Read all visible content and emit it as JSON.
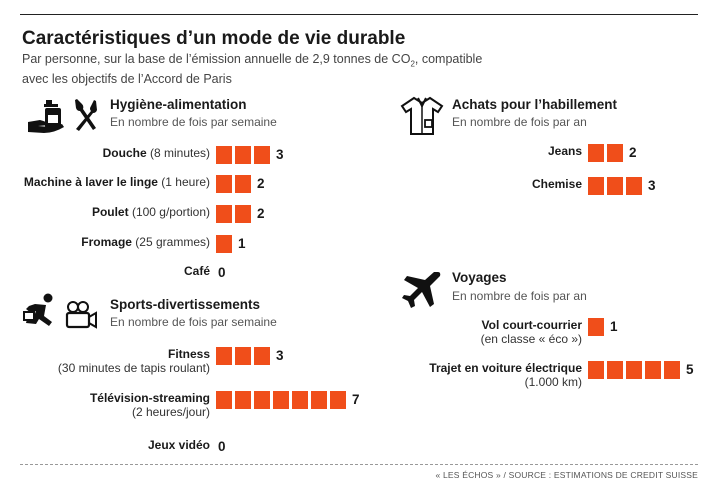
{
  "title": "Caractéristiques d’un mode de vie durable",
  "subtitle_line1": "Par personne, sur la base de l’émission annuelle de 2,9 tonnes de CO",
  "subtitle_sub": "2",
  "subtitle_line1_end": ", compatible",
  "subtitle_line2": "avec les objectifs de l’Accord de Paris",
  "colors": {
    "bar": "#f04e1a",
    "text": "#1a1a1a"
  },
  "sections": {
    "hygiene": {
      "title": "Hygiène-alimentation",
      "subtitle": "En nombre de fois par semaine",
      "icons": [
        "hand-wash-icon",
        "fork-knife-icon"
      ]
    },
    "sports": {
      "title": "Sports-divertissements",
      "subtitle": "En nombre de fois par semaine",
      "icons": [
        "runner-icon",
        "camera-icon"
      ]
    },
    "achats": {
      "title": "Achats pour l’habillement",
      "subtitle": "En nombre de fois par an",
      "icons": [
        "shirt-icon"
      ]
    },
    "voyages": {
      "title": "Voyages",
      "subtitle": "En nombre de fois par an",
      "icons": [
        "airplane-icon"
      ]
    }
  },
  "chart_data": {
    "type": "bar",
    "title": "Caractéristiques d’un mode de vie durable",
    "series": [
      {
        "section": "Hygiène-alimentation",
        "unit": "fois par semaine",
        "items": [
          {
            "label": "Douche",
            "detail": "(8 minutes)",
            "value": 3
          },
          {
            "label": "Machine à laver le linge",
            "detail": "(1 heure)",
            "value": 2
          },
          {
            "label": "Poulet",
            "detail": "(100 g/portion)",
            "value": 2
          },
          {
            "label": "Fromage",
            "detail": "(25 grammes)",
            "value": 1
          },
          {
            "label": "Café",
            "detail": "",
            "value": 0
          }
        ]
      },
      {
        "section": "Sports-divertissements",
        "unit": "fois par semaine",
        "items": [
          {
            "label": "Fitness",
            "detail": "(30 minutes de tapis roulant)",
            "value": 3
          },
          {
            "label": "Télévision-streaming",
            "detail": "(2 heures/jour)",
            "value": 7
          },
          {
            "label": "Jeux vidéo",
            "detail": "",
            "value": 0
          }
        ]
      },
      {
        "section": "Achats pour l’habillement",
        "unit": "fois par an",
        "items": [
          {
            "label": "Jeans",
            "detail": "",
            "value": 2
          },
          {
            "label": "Chemise",
            "detail": "",
            "value": 3
          }
        ]
      },
      {
        "section": "Voyages",
        "unit": "fois par an",
        "items": [
          {
            "label": "Vol court-courrier",
            "detail": "(en classe « éco »)",
            "value": 1
          },
          {
            "label": "Trajet en voiture électrique",
            "detail": "(1.000 km)",
            "value": 5
          }
        ]
      }
    ]
  },
  "source": "« LES ÉCHOS » / SOURCE : ESTIMATIONS DE CREDIT SUISSE"
}
